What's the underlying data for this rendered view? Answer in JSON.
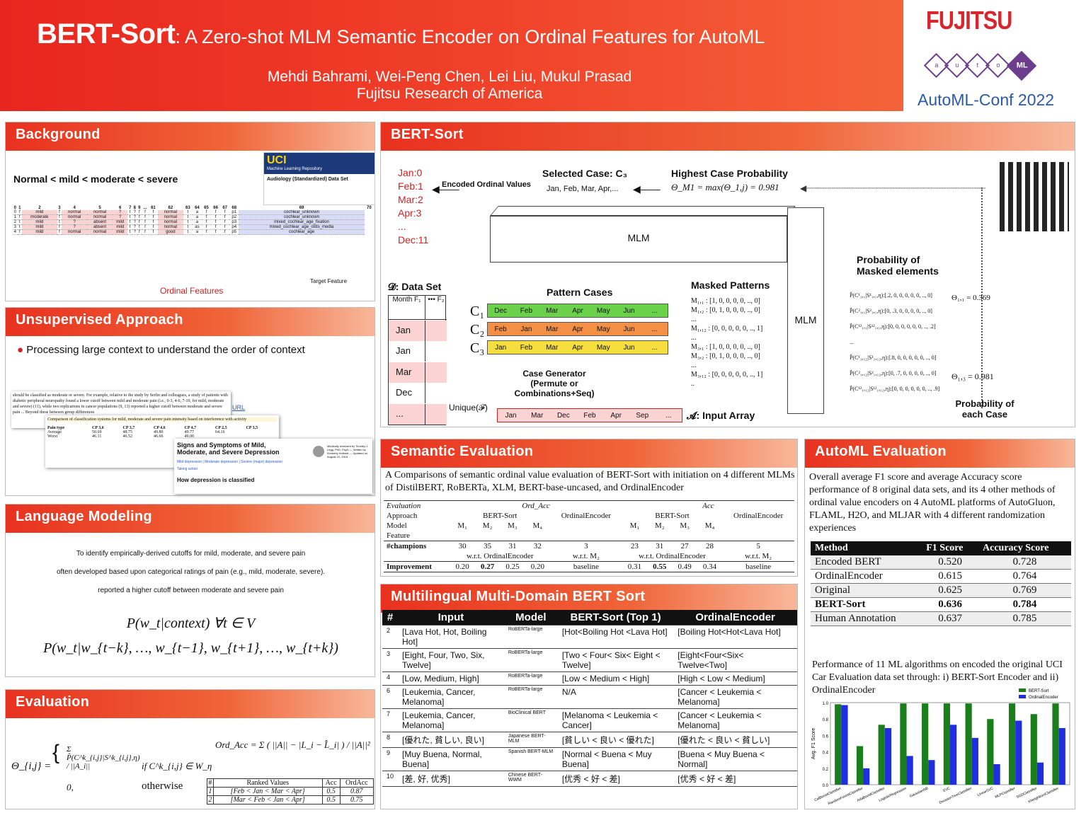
{
  "header": {
    "title_main": "BERT-Sort",
    "title_rest": ": A Zero-shot MLM Semantic Encoder on Ordinal Features for AutoML",
    "authors": "Mehdi Bahrami, Wei-Peng Chen, Lei Liu, Mukul Prasad",
    "affiliation": "Fujitsu Research of America",
    "brand": "FUJITSU",
    "conf": "AutoML-Conf 2022",
    "automl_letters": [
      "a",
      "u",
      "t",
      "o",
      "ML"
    ]
  },
  "background": {
    "heading": "Background",
    "order_text": "Normal < mild < moderate < severe",
    "uci_title": "UCI",
    "uci_sub": "Machine Learning Repository",
    "dataset_title": "Audiology (Standardized) Data Set",
    "ordinal_label": "Ordinal Features",
    "target_label": "Target Feature",
    "col_headers": [
      "0",
      "1",
      "2",
      "3",
      "4",
      "5",
      "6",
      "7",
      "8",
      "9",
      "...",
      "61",
      "62",
      "63",
      "64",
      "65",
      "66",
      "67",
      "68",
      "69",
      "70"
    ],
    "rows": [
      [
        "0",
        "f",
        "mild",
        "f",
        "normal",
        "normal",
        "?",
        "t",
        "?",
        "f",
        "f",
        "f",
        "normal",
        "t",
        "a",
        "f",
        "f",
        "f",
        "p1",
        "cochlear_unknown"
      ],
      [
        "1",
        "f",
        "moderate",
        "f",
        "normal",
        "normal",
        "?",
        "t",
        "?",
        "f",
        "f",
        "f",
        "normal",
        "t",
        "a",
        "f",
        "f",
        "f",
        "p2",
        "cochlear_unknown"
      ],
      [
        "2",
        "t",
        "mild",
        "t",
        "?",
        "absent",
        "mild",
        "t",
        "?",
        "f",
        "f",
        "f",
        "normal",
        "t",
        "a",
        "f",
        "f",
        "f",
        "p3",
        "mixed_cochlear_age_fixation"
      ],
      [
        "3",
        "t",
        "mild",
        "f",
        "?",
        "absent",
        "mild",
        "t",
        "?",
        "f",
        "f",
        "f",
        "normal",
        "t",
        "as",
        "f",
        "f",
        "f",
        "p4",
        "mixed_cochlear_age_otitis_media"
      ],
      [
        "4",
        "f",
        "mild",
        "f",
        "normal",
        "normal",
        "mild",
        "t",
        "?",
        "f",
        "f",
        "f",
        "good",
        "t",
        "a",
        "f",
        "f",
        "f",
        "p5",
        "cochlear_age"
      ]
    ]
  },
  "unsupervised": {
    "heading": "Unsupervised Approach",
    "bullet": "Processing large context to understand the order of context",
    "url": "URL",
    "snip_text": "should be classified as moderate or severe. For example, relative to the study by Serlin and colleagues, a study of patients with diabetic peripheral neuropathy found a lower cutoff between mild and moderate pain (i.e., 0-3, 4-6, 7-10, for mild, moderate and severe) (11), while two replications in cancer populations (9, 13) reported a higher cutoff between moderate and severe pain ... Beyond these between group differences",
    "snip2_title": "Comparison of classification systems for mild, moderate and severe pain intensity based on interference with activity",
    "snip2_cols": [
      "Pain type",
      "CP 3,6",
      "CP 3,7",
      "CP 4,6",
      "CP 4,7",
      "CP 2,5",
      "CP 3,5"
    ],
    "snip2_rows": [
      [
        "Average",
        "50.69",
        "48.75",
        "49.80",
        "49.77",
        "64.16",
        ""
      ],
      [
        "Worst",
        "46.11",
        "46.52",
        "46.66",
        "49.00",
        "",
        ""
      ]
    ],
    "snip3_title": "Signs and Symptoms of Mild, Moderate, and Severe Depression",
    "snip3_links": "Mild depression | Moderate depression | Severe (major) depression",
    "snip3_link2": "Taking action",
    "snip3_foot": "How depression is classified",
    "snip3_review": "Medically reviewed by Timothy J. Legg, PhD, PsyD — Written by Kimberly Holland — Updated on August 22, 2018"
  },
  "language": {
    "heading": "Language Modeling",
    "line1": "To identify empirically-derived cutoffs for mild, moderate, and severe pain",
    "line2": "often developed based upon categorical ratings of pain (e.g., mild, moderate, severe).",
    "line3": "reported a higher cutoff between moderate and severe pain",
    "eq1": "P(w_t|context) ∀t ∈ V",
    "eq2": "P(w_t|w_{t−k}, …, w_{t−1}, w_{t+1}, …, w_{t+k})"
  },
  "evaluation": {
    "heading": "Evaluation",
    "theta": "Θ_{i,j} =",
    "case1": "Σ P̂(C^k_{i,j}|S^k_{i,j},η) / ||A_i||",
    "cond1": "if C^k_{i,j} ∈ W_η",
    "case2": "0,",
    "cond2": "otherwise",
    "ordacc": "Ord_Acc = Σ ( ||A|| − |L_i − L̂_i| ) / ||A||²",
    "tcols": [
      "#",
      "Ranked Values",
      "Acc",
      "OrdAcc"
    ],
    "trows": [
      [
        "1",
        "[Feb < Jan < Mar < Apr]",
        "0.5",
        "0.87"
      ],
      [
        "2",
        "[Mar < Feb < Jan < Apr]",
        "0.5",
        "0.75"
      ]
    ]
  },
  "bertsort": {
    "heading": "BERT-Sort",
    "months": [
      "Jan:0",
      "Feb:1",
      "Mar:2",
      "Apr:3",
      "...",
      "Dec:11"
    ],
    "encoded": "Encoded Ordinal Values",
    "selected": "Selected Case: C₃",
    "selected_list": "Jan, Feb, Mar, Apr,...",
    "highest": "Highest Case Probability",
    "highest_eq": "Θ_M1 = max(Θ_1,j) = 0.981",
    "mlm": "MLM",
    "mlm2": "MLM",
    "dataset": "𝓓: Data Set",
    "col1": "Month",
    "col1b": "F₁",
    "col2": "•••",
    "col2b": "F₂",
    "vals": [
      "Jan",
      "Jan",
      "Mar",
      "Dec",
      "..."
    ],
    "pattern_cases": "Pattern Cases",
    "c_labels": [
      "C₁",
      "C₂",
      "C₃"
    ],
    "c1": [
      "Dec",
      "Feb",
      "Mar",
      "Apr",
      "May",
      "Jun",
      "..."
    ],
    "c2": [
      "Feb",
      "Jan",
      "Mar",
      "Apr",
      "May",
      "Jun",
      "..."
    ],
    "c3": [
      "Jan",
      "Feb",
      "Mar",
      "Apr",
      "May",
      "Jun",
      "..."
    ],
    "case_gen": "Case Generator (Permute or Combinations+Seq)",
    "unique": "Unique(𝓕)",
    "input": [
      "Jan",
      "Mar",
      "Dec",
      "Feb",
      "Apr",
      "Sep",
      "..."
    ],
    "input_label": "𝓐: Input Array",
    "masked": "Masked Patterns",
    "masks": [
      "M₁,₁ : [1, 0, 0, 0, 0, .., 0]",
      "M₁,₂ : [0, 1, 0, 0, 0, .., 0]",
      "...",
      "M₁,₁₂ : [0, 0, 0, 0, 0, .., 1]",
      "...",
      "M₃,₁ : [1, 0, 0, 0, 0, .., 0]",
      "M₃,₂ : [0, 1, 0, 0, 0, .., 0]",
      "...",
      "M₃,₁₂ : [0, 0, 0, 0, 0, .., 1]",
      ".."
    ],
    "prob_masked": "Probability of Masked elements",
    "probs": [
      "P̂(C¹₁,₁|S¹₁,₁,η):[.2, 0, 0, 0, 0, 0, .., 0]",
      "P̂(C²₁,₁|S²₁,₁,η):[0, .3, 0, 0, 0, 0, .., 0]",
      "P̂(C¹²₁,₁|S¹²₁,₁,η):[0, 0, 0, 0, 0, 0, .., .2]",
      "...",
      "P̂(C¹₁,₁₂|S¹₁,₁₂,η):[.8, 0, 0, 0, 0, 0, .., 0]",
      "P̂(C²₁,₁₂|S²₁,₁₂,η):[0, .7, 0, 0, 0, 0, .., 0]",
      "P̂(C¹²₁,₁₂|S¹²₁,₁₂,η):[0, 0, 0, 0, 0, 0, .., .9]"
    ],
    "theta11": "Θ₁,₁ = 0.369",
    "theta13": "Θ₁,₃ = 0.981",
    "prob_case": "Probability of each Case"
  },
  "semantic": {
    "heading": "Semantic Evaluation",
    "desc": "A Comparisons of semantic ordinal value evaluation of BERT-Sort with initiation on 4 different MLMs of DistilBERT, RoBERTa, XLM, BERT-base-uncased, and OrdinalEncoder",
    "h1": [
      "Evaluation",
      "Ord_Acc",
      "Acc"
    ],
    "h2": [
      "Approach",
      "BERT-Sort",
      "OrdinalEncoder",
      "BERT-Sort",
      "OrdinalEncoder"
    ],
    "h3": [
      "Model",
      "M₁",
      "M₂",
      "M₃",
      "M₄",
      "M₁",
      "M₂",
      "M₃",
      "M₄"
    ],
    "h4": [
      "Feature"
    ],
    "champ": [
      "#champions",
      "30",
      "35",
      "31",
      "32",
      "3",
      "23",
      "31",
      "27",
      "28",
      "5"
    ],
    "wrt": [
      "w.r.t. OrdinalEncoder",
      "w.r.t. M₂",
      "w.r.t. OrdinalEncoder",
      "w.r.t. M₂"
    ],
    "impr": [
      "Improvement",
      "0.20",
      "0.27",
      "0.25",
      "0.20",
      "baseline",
      "0.31",
      "0.55",
      "0.49",
      "0.34",
      "baseline"
    ]
  },
  "multilingual": {
    "heading": "Multilingual Multi-Domain BERT Sort",
    "cols": [
      "#",
      "Input",
      "Model",
      "BERT-Sort (Top 1)",
      "OrdinalEncoder"
    ],
    "rows": [
      [
        "2",
        "[Lava Hot, Hot, Boiling Hot]",
        "RoBERTa-large",
        "[Hot<Boiling Hot <Lava Hot]",
        "[Boiling Hot<Hot<Lava Hot]"
      ],
      [
        "3",
        "[Eight, Four, Two, Six, Twelve]",
        "RoBERTa-large",
        "[Two < Four< Six< Eight < Twelve]",
        "[Eight<Four<Six< Twelve<Two]"
      ],
      [
        "4",
        "[Low, Medium, High]",
        "RoBERTa-large",
        "[Low < Medium < High]",
        "[High < Low < Medium]"
      ],
      [
        "6",
        "[Leukemia, Cancer, Melanoma]",
        "RoBERTa-large",
        "N/A",
        "[Cancer < Leukemia < Melanoma]"
      ],
      [
        "7",
        "[Leukemia, Cancer, Melanoma]",
        "BioClinical BERT",
        "[Melanoma < Leukemia < Cancer]",
        "[Cancer < Leukemia < Melanoma]"
      ],
      [
        "8",
        "[優れた, 貧しい, 良い]",
        "Japanese BERT-MLM",
        "[貧しい < 良い < 優れた]",
        "[優れた < 良い < 貧しい]"
      ],
      [
        "9",
        "[Muy Buena, Normal, Buena]",
        "Spanish BERT-MLM",
        "[Normal < Buena < Muy Buena]",
        "[Buena < Muy Buena < Normal]"
      ],
      [
        "10",
        "[差, 好, 优秀]",
        "Chinese BERT-WWM",
        "[优秀 < 好 < 差]",
        "[优秀 < 好 < 差]"
      ]
    ]
  },
  "automl": {
    "heading": "AutoML Evaluation",
    "desc": "Overall average F1 score and average Accuracy score performance of 8 original data sets, and its 4 other methods of ordinal value encoders on 4 AutoML platforms of AutoGluon, FLAML, H2O, and MLJAR  with 4 different randomization experiences",
    "cols": [
      "Method",
      "F1 Score",
      "Accuracy Score"
    ],
    "rows": [
      [
        "Encoded BERT",
        "0.520",
        "0.728"
      ],
      [
        "OrdinalEncoder",
        "0.615",
        "0.764"
      ],
      [
        "Original",
        "0.625",
        "0.769"
      ],
      [
        "BERT-Sort",
        "0.636",
        "0.784"
      ],
      [
        "Human Annotation",
        "0.637",
        "0.785"
      ]
    ],
    "perf": "Performance of 11 ML algorithms on encoded the original UCI Car Evaluation data set through: i) BERT-Sort Encoder and ii) OrdinalEncoder"
  },
  "chart_data": {
    "type": "bar",
    "categories": [
      "CatBoostClassifier",
      "RandomForestClassifier",
      "AdaBoostClassifier",
      "LogisticRegression",
      "GaussianNB",
      "SVC",
      "DecisionTreeClassifier",
      "LinearSVC",
      "MLPClassifier",
      "SGDClassifier",
      "KNeighborsClassifier"
    ],
    "series": [
      {
        "name": "BERT-Sort",
        "color": "#1a7f1a",
        "values": [
          0.98,
          0.47,
          0.73,
          0.99,
          0.99,
          0.99,
          0.99,
          0.8,
          0.99,
          0.86,
          0.99
        ]
      },
      {
        "name": "OrdinalEncoder",
        "color": "#1f2fe0",
        "values": [
          0.97,
          0.2,
          0.69,
          0.35,
          0.3,
          0.73,
          0.57,
          0.25,
          0.78,
          0.27,
          0.69
        ]
      }
    ],
    "ylabel": "Avg. F1 Score",
    "ylim": [
      0,
      1.0
    ],
    "yticks": [
      "0.0",
      "0.2",
      "0.4",
      "0.6",
      "0.8",
      "1.0"
    ],
    "legend": "top-right"
  }
}
